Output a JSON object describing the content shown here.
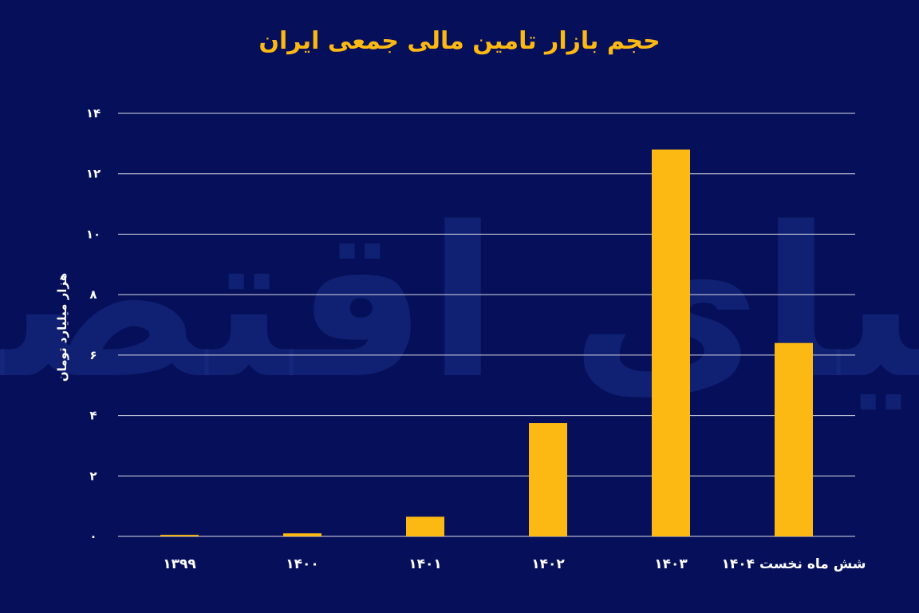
{
  "chart_data": {
    "type": "bar",
    "title": "حجم بازار تامین مالی جمعی ایران",
    "xlabel": "",
    "ylabel": "هزار میلیارد تومان",
    "categories": [
      "۱۳۹۹",
      "۱۴۰۰",
      "۱۴۰۱",
      "۱۴۰۲",
      "۱۴۰۳",
      "شش ماه نخست ۱۴۰۴"
    ],
    "values": [
      0.05,
      0.1,
      0.65,
      3.75,
      12.8,
      6.4
    ],
    "ylim": [
      0,
      14
    ],
    "yticks": [
      0,
      2,
      4,
      6,
      8,
      10,
      12,
      14
    ],
    "ytick_labels": [
      "۰",
      "۲",
      "۴",
      "۶",
      "۸",
      "۱۰",
      "۱۲",
      "۱۴"
    ],
    "grid": true,
    "bar_color": "#fdb913",
    "background_color": "#06105a",
    "grid_color": "#ffffff",
    "title_color": "#fdb913",
    "watermark": "دنیای اقتصاد"
  }
}
